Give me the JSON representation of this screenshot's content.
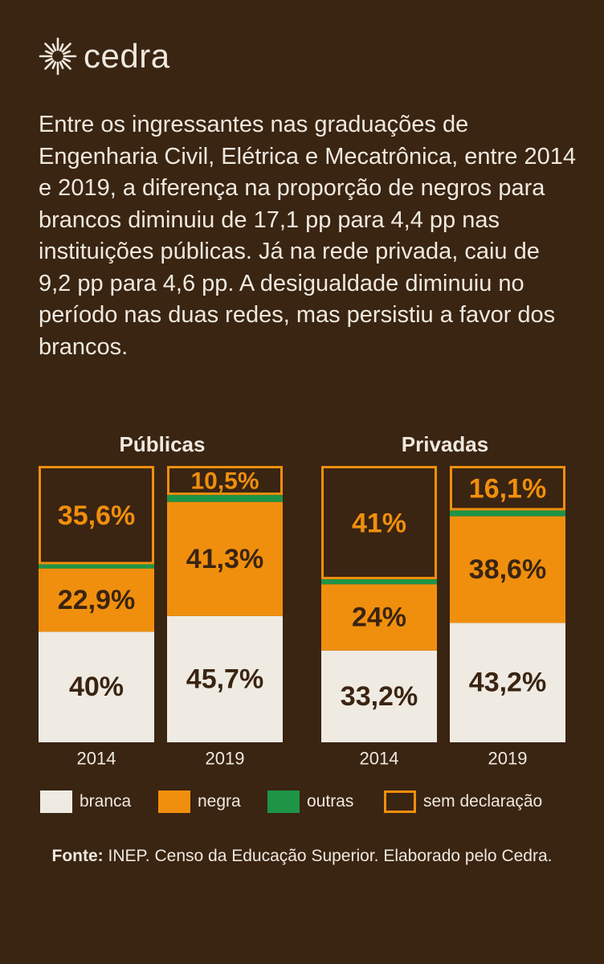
{
  "brand": {
    "name": "cedra",
    "icon": "sunburst-icon"
  },
  "intro_text": "Entre os ingressantes nas graduações de Engenharia Civil, Elétrica e Mecatrônica, entre 2014 e 2019, a diferença na proporção de negros para brancos diminuiu de 17,1 pp para 4,4 pp nas instituições públicas. Já na rede privada, caiu de 9,2 pp para 4,6 pp. A desigualdade diminuiu no período nas duas redes, mas persistiu a favor dos brancos.",
  "colors": {
    "background": "#3a2412",
    "branca": "#efebe3",
    "negra": "#f08f0d",
    "outras": "#1e9447",
    "sem_declaracao": "#f08f0d",
    "text_light": "#efe9df",
    "text_dark": "#3a2412"
  },
  "chart_data": {
    "type": "bar",
    "stacked": true,
    "groups": [
      {
        "title": "Públicas",
        "bars": [
          {
            "year": "2014",
            "branca": 40,
            "negra": 22.9,
            "outras": 1.5,
            "sem_declaracao": 35.6,
            "labels": {
              "branca": "40%",
              "negra": "22,9%",
              "sem_declaracao": "35,6%"
            }
          },
          {
            "year": "2019",
            "branca": 45.7,
            "negra": 41.3,
            "outras": 2.5,
            "sem_declaracao": 10.5,
            "labels": {
              "branca": "45,7%",
              "negra": "41,3%",
              "sem_declaracao": "10,5%"
            }
          }
        ]
      },
      {
        "title": "Privadas",
        "bars": [
          {
            "year": "2014",
            "branca": 33.2,
            "negra": 24,
            "outras": 1.8,
            "sem_declaracao": 41,
            "labels": {
              "branca": "33,2%",
              "negra": "24%",
              "sem_declaracao": "41%"
            }
          },
          {
            "year": "2019",
            "branca": 43.2,
            "negra": 38.6,
            "outras": 2.1,
            "sem_declaracao": 16.1,
            "labels": {
              "branca": "43,2%",
              "negra": "38,6%",
              "sem_declaracao": "16,1%"
            }
          }
        ]
      }
    ],
    "legend": [
      {
        "key": "branca",
        "label": "branca"
      },
      {
        "key": "negra",
        "label": "negra"
      },
      {
        "key": "outras",
        "label": "outras"
      },
      {
        "key": "sem_declaracao",
        "label": "sem declaração"
      }
    ]
  },
  "source": {
    "label": "Fonte:",
    "text": "INEP. Censo da Educação Superior. Elaborado pelo Cedra."
  }
}
